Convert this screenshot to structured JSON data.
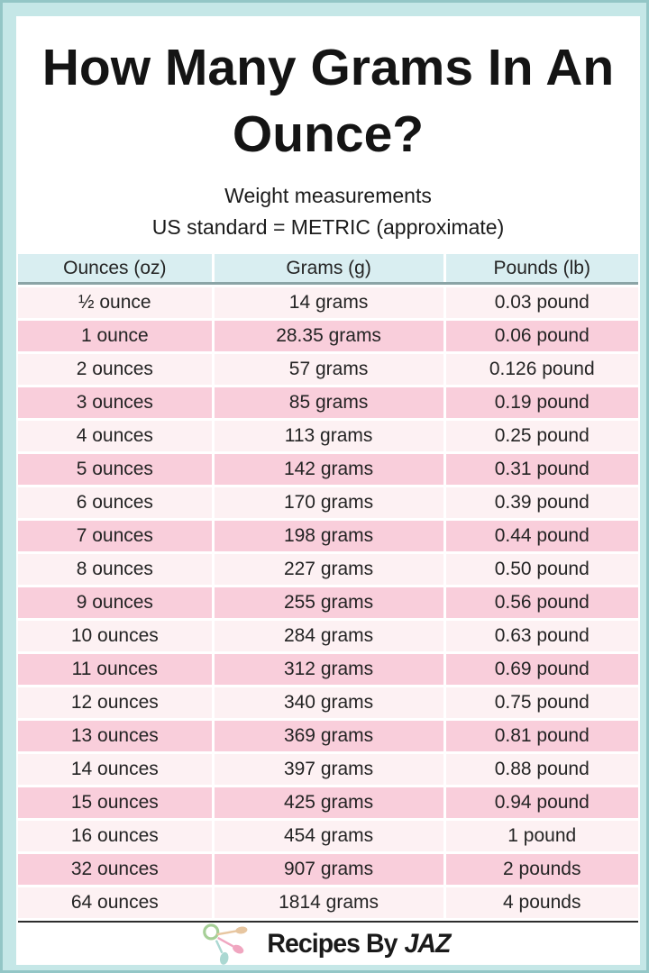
{
  "header": {
    "title_line1": "How Many Grams In An",
    "title_line2": "Ounce?",
    "subtitle_line1": "Weight measurements",
    "subtitle_line2": "US standard = METRIC (approximate)"
  },
  "chart_data": {
    "type": "table",
    "title": "How Many Grams In An Ounce?",
    "subtitle_lines": [
      "Weight measurements",
      "US standard = METRIC (approximate)"
    ],
    "columns": [
      "Ounces (oz)",
      "Grams (g)",
      "Pounds (lb)"
    ],
    "rows": [
      [
        "½ ounce",
        "14 grams",
        "0.03 pound"
      ],
      [
        "1 ounce",
        "28.35 grams",
        "0.06 pound"
      ],
      [
        "2 ounces",
        "57 grams",
        "0.126 pound"
      ],
      [
        "3 ounces",
        "85 grams",
        "0.19 pound"
      ],
      [
        "4 ounces",
        "113 grams",
        "0.25 pound"
      ],
      [
        "5 ounces",
        "142 grams",
        "0.31 pound"
      ],
      [
        "6 ounces",
        "170 grams",
        "0.39 pound"
      ],
      [
        "7 ounces",
        "198 grams",
        "0.44 pound"
      ],
      [
        "8 ounces",
        "227 grams",
        "0.50 pound"
      ],
      [
        "9 ounces",
        "255 grams",
        "0.56 pound"
      ],
      [
        "10 ounces",
        "284 grams",
        "0.63 pound"
      ],
      [
        "11 ounces",
        "312 grams",
        "0.69 pound"
      ],
      [
        "12 ounces",
        "340 grams",
        "0.75 pound"
      ],
      [
        "13 ounces",
        "369 grams",
        "0.81 pound"
      ],
      [
        "14 ounces",
        "397 grams",
        "0.88 pound"
      ],
      [
        "15 ounces",
        "425 grams",
        "0.94 pound"
      ],
      [
        "16 ounces",
        "454 grams",
        "1 pound"
      ],
      [
        "32 ounces",
        "907 grams",
        "2 pounds"
      ],
      [
        "64 ounces",
        "1814 grams",
        "4 pounds"
      ]
    ],
    "numeric": {
      "ounces": [
        0.5,
        1,
        2,
        3,
        4,
        5,
        6,
        7,
        8,
        9,
        10,
        11,
        12,
        13,
        14,
        15,
        16,
        32,
        64
      ],
      "grams": [
        14,
        28.35,
        57,
        85,
        113,
        142,
        170,
        198,
        227,
        255,
        284,
        312,
        340,
        369,
        397,
        425,
        454,
        907,
        1814
      ],
      "pounds": [
        0.03,
        0.06,
        0.126,
        0.19,
        0.25,
        0.31,
        0.39,
        0.44,
        0.5,
        0.56,
        0.63,
        0.69,
        0.75,
        0.81,
        0.88,
        0.94,
        1,
        2,
        4
      ]
    },
    "layout": {
      "grid": false,
      "row_striping": "light/pink alternating",
      "header_position": "top"
    }
  },
  "footer": {
    "brand_prefix": "Recipes By",
    "brand_suffix": "JAZ",
    "logo_icon": "measuring-spoons-icon"
  },
  "colors": {
    "border": "#c5e7e7",
    "border_edge": "#93c6c6",
    "card": "#ffffff",
    "header_bg": "#d9eef1",
    "row_light": "#fdf1f3",
    "row_pink": "#f9cedb",
    "header_rule": "#8ba4a6",
    "footer_rule": "#2d2d2d",
    "text": "#1d1d1d",
    "logo_green": "#a6cf97",
    "logo_tan": "#e7c6a0",
    "logo_pink": "#f0a6c0",
    "logo_teal": "#abd8d2"
  }
}
